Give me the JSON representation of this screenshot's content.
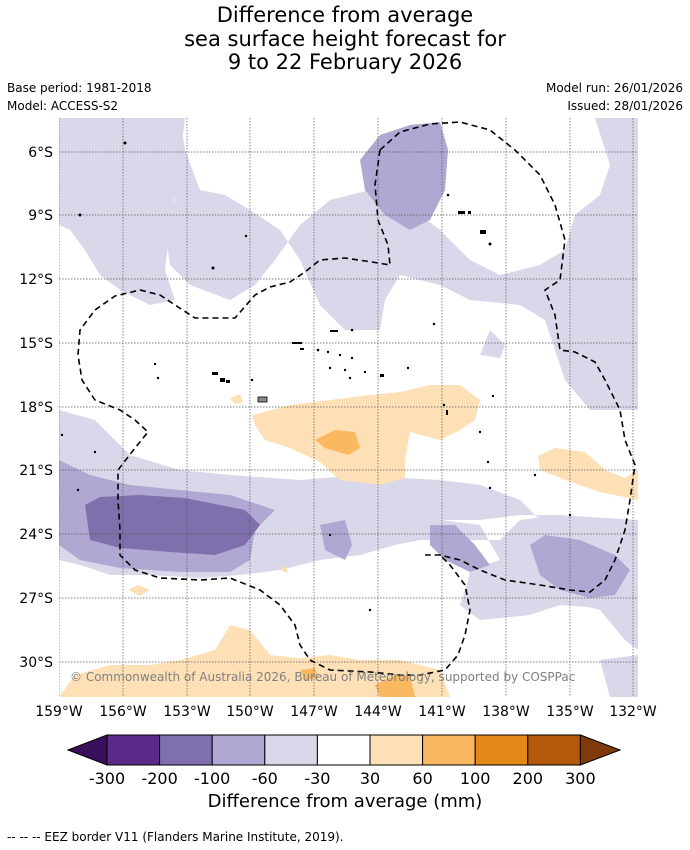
{
  "title": {
    "line1": "Difference from average",
    "line2": "sea surface height forecast for",
    "line3": "9 to 22 February 2026"
  },
  "meta": {
    "base_period": "Base period: 1981-2018",
    "model": "Model: ACCESS-S2",
    "model_run": "Model run: 26/01/2026",
    "issued": "Issued: 28/01/2026"
  },
  "map": {
    "lat_labels": [
      "6°S",
      "9°S",
      "12°S",
      "15°S",
      "18°S",
      "21°S",
      "24°S",
      "27°S",
      "30°S"
    ],
    "lon_labels": [
      "159°W",
      "156°W",
      "153°W",
      "150°W",
      "147°W",
      "144°W",
      "141°W",
      "138°W",
      "135°W",
      "132°W"
    ],
    "copyright": "© Commonwealth of Australia 2026, Bureau of Meteorology, supported by COSPPac"
  },
  "colorbar": {
    "colors": [
      "#3b0f5c",
      "#5b2a8a",
      "#7f6fad",
      "#b0a8d2",
      "#d8d8ea",
      "#ffffff",
      "#fde0b6",
      "#fbb860",
      "#e38918",
      "#b4580c",
      "#7e3a0b"
    ],
    "ticks": [
      "-300",
      "-200",
      "-100",
      "-60",
      "-30",
      "30",
      "60",
      "100",
      "200",
      "300"
    ],
    "label": "Difference from average (mm)"
  },
  "footer": {
    "eez_legend": "-- -- -- EEZ border V11 (Flanders Marine Institute, 2019)."
  }
}
